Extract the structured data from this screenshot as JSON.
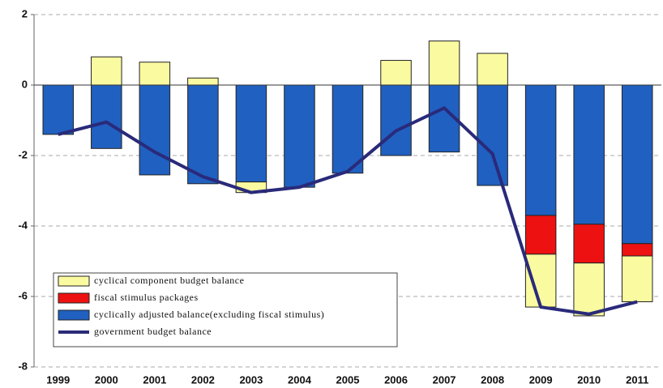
{
  "chart_data": {
    "type": "bar",
    "categories": [
      "1999",
      "2000",
      "2001",
      "2002",
      "2003",
      "2004",
      "2005",
      "2006",
      "2007",
      "2008",
      "2009",
      "2010",
      "2011"
    ],
    "series": [
      {
        "name": "cyclical component budget balance",
        "type": "bar",
        "color": "#fafaa0",
        "values": [
          0,
          0.8,
          0.65,
          0.2,
          -0.3,
          0,
          0,
          0.7,
          1.25,
          0.9,
          -1.5,
          -1.5,
          -1.3
        ]
      },
      {
        "name": "fiscal stimulus packages",
        "type": "bar",
        "color": "#ee1111",
        "values": [
          0,
          0,
          0,
          0,
          0,
          0,
          0,
          0,
          0,
          0,
          -1.1,
          -1.1,
          -0.35
        ]
      },
      {
        "name": "cyclically adjusted balance(excluding fiscal stimulus)",
        "type": "bar",
        "color": "#2060c0",
        "values": [
          -1.4,
          -1.8,
          -2.55,
          -2.8,
          -2.75,
          -2.9,
          -2.5,
          -2.0,
          -1.9,
          -2.85,
          -3.7,
          -3.95,
          -4.5
        ]
      },
      {
        "name": "government budget balance",
        "type": "line",
        "color": "#2a2a7a",
        "values": [
          -1.4,
          -1.05,
          -1.9,
          -2.6,
          -3.05,
          -2.9,
          -2.45,
          -1.3,
          -0.65,
          -1.95,
          -6.3,
          -6.5,
          -6.15
        ]
      }
    ],
    "ylim": [
      -8,
      2
    ],
    "yticks": [
      -8,
      -6,
      -4,
      -2,
      0,
      2
    ],
    "grid": true
  }
}
